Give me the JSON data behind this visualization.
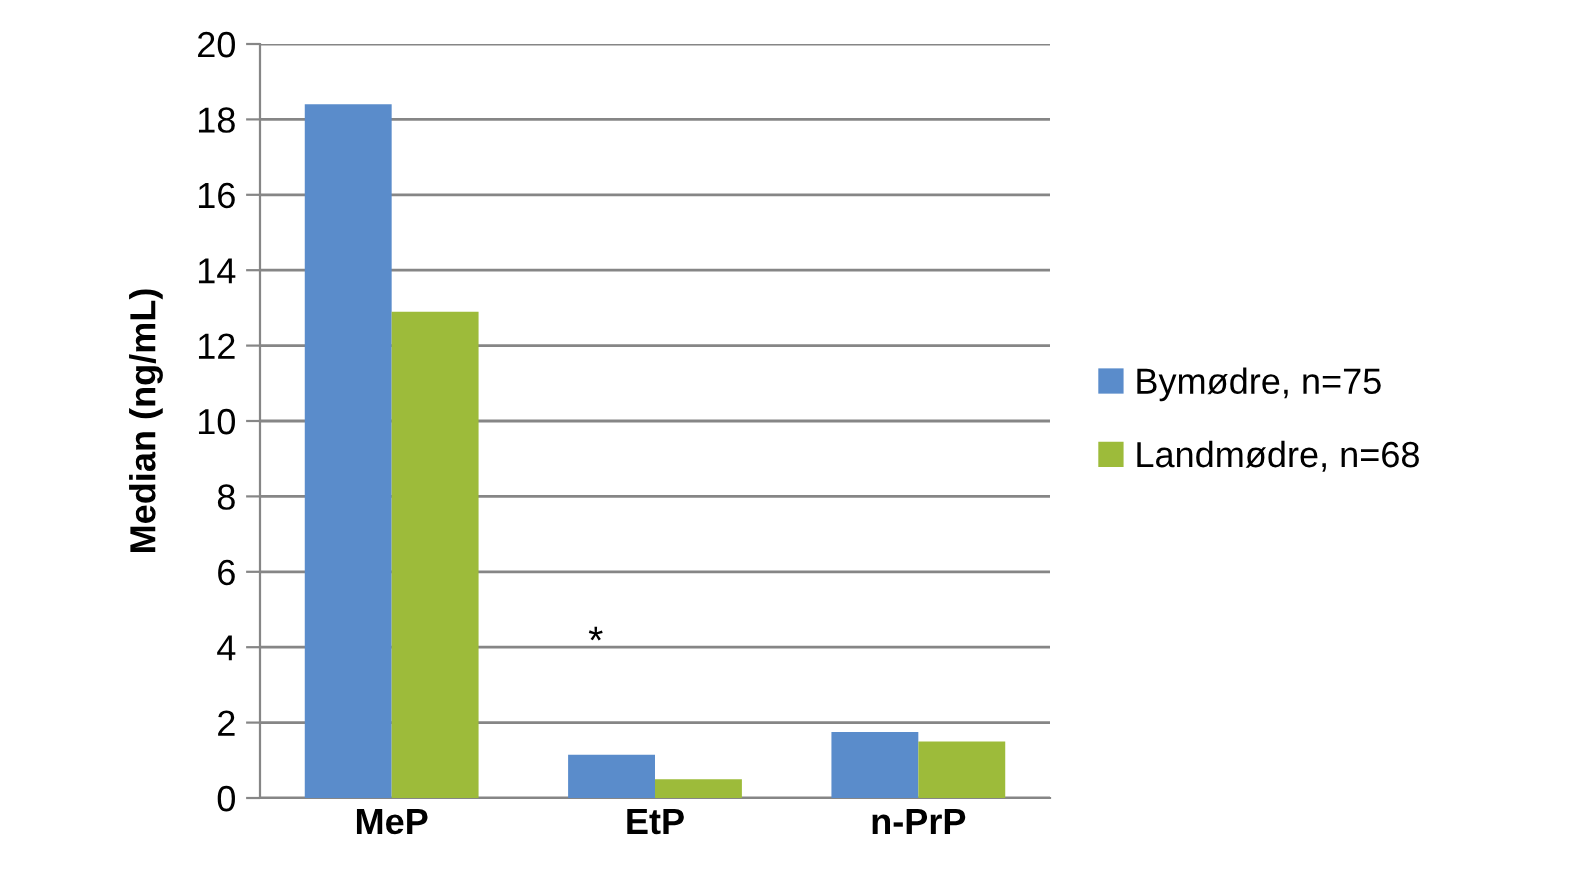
{
  "chart_data": {
    "type": "bar",
    "ylabel": "Median (ng/mL)",
    "categories": [
      "MeP",
      "EtP",
      "n-PrP"
    ],
    "series": [
      {
        "name": "Bymødre, n=75",
        "color": "#5a8ccb",
        "values": [
          18.4,
          1.15,
          1.75
        ]
      },
      {
        "name": "Landmødre, n=68",
        "color": "#9dbb3a",
        "values": [
          12.9,
          0.5,
          1.5
        ]
      }
    ],
    "ylim": [
      0,
      20
    ],
    "yticks": [
      0,
      2,
      4,
      6,
      8,
      10,
      12,
      14,
      16,
      18,
      20
    ],
    "grid": "y",
    "legend": "right",
    "annotations": [
      "*"
    ]
  }
}
